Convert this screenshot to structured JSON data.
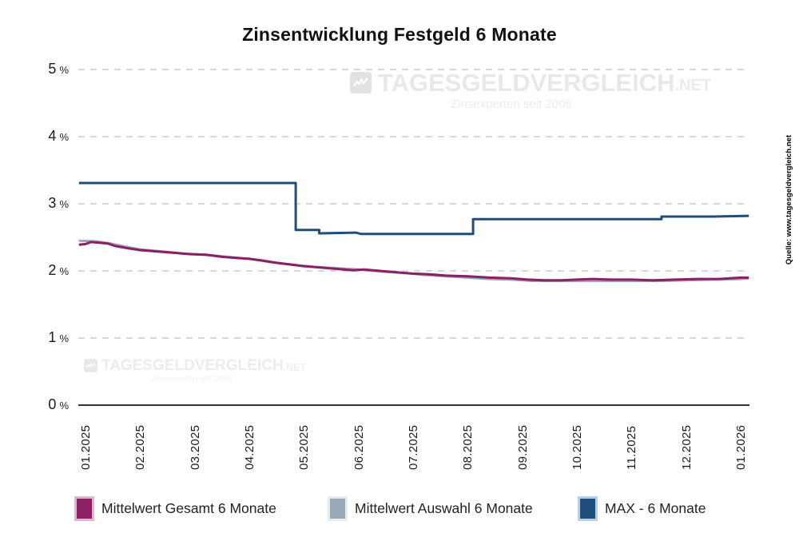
{
  "title": "Zinsentwicklung Festgeld 6 Monate",
  "watermark": {
    "brand": "TAGESGELDVERGLEICH",
    "tld": ".NET",
    "tagline": "Zinsexperten seit 2006"
  },
  "source": "Quelle: www.tagesgeldvergleich.net",
  "colors": {
    "gesamt": "#8b2064",
    "auswahl": "#98a9ba",
    "max": "#1f4e7c",
    "gesamt_border": "#ddb7d0",
    "auswahl_border": "#e7ebee",
    "max_border": "#b7d0e2",
    "grid": "#cccccc",
    "axis_line": "#333333",
    "text": "#1a1a1a"
  },
  "legend": {
    "items": [
      {
        "key": "gesamt",
        "label": "Mittelwert Gesamt 6 Monate"
      },
      {
        "key": "auswahl",
        "label": "Mittelwert Auswahl 6 Monate"
      },
      {
        "key": "max",
        "label": "MAX - 6 Monate"
      }
    ]
  },
  "chart_data": {
    "type": "line",
    "title": "Zinsentwicklung Festgeld 6 Monate",
    "x_ticks": [
      "01.2025",
      "02.2025",
      "03.2025",
      "04.2025",
      "05.2025",
      "06.2025",
      "07.2025",
      "08.2025",
      "09.2025",
      "10.2025",
      "11.2025",
      "12.2025",
      "01.2026"
    ],
    "y_ticks": [
      0,
      1,
      2,
      3,
      4,
      5
    ],
    "y_unit": "%",
    "ylim": [
      0,
      5
    ],
    "grid": "dashed-horizontal",
    "legend_position": "bottom",
    "x_note": "points use month index, 0 = 01.2025, 12 = 01.2026",
    "series": [
      {
        "name": "Mittelwert Gesamt 6 Monate",
        "color_key": "gesamt",
        "z": 2,
        "points": [
          [
            -0.12,
            2.39
          ],
          [
            0,
            2.4
          ],
          [
            0.1,
            2.43
          ],
          [
            0.25,
            2.42
          ],
          [
            0.4,
            2.41
          ],
          [
            0.55,
            2.37
          ],
          [
            0.75,
            2.34
          ],
          [
            1.0,
            2.31
          ],
          [
            1.3,
            2.29
          ],
          [
            1.6,
            2.27
          ],
          [
            1.9,
            2.25
          ],
          [
            2.2,
            2.24
          ],
          [
            2.5,
            2.21
          ],
          [
            2.8,
            2.19
          ],
          [
            3.0,
            2.18
          ],
          [
            3.2,
            2.16
          ],
          [
            3.5,
            2.12
          ],
          [
            3.8,
            2.09
          ],
          [
            4.0,
            2.07
          ],
          [
            4.3,
            2.05
          ],
          [
            4.6,
            2.03
          ],
          [
            4.9,
            2.01
          ],
          [
            5.1,
            2.02
          ],
          [
            5.4,
            2.0
          ],
          [
            5.7,
            1.98
          ],
          [
            6.0,
            1.96
          ],
          [
            6.3,
            1.95
          ],
          [
            6.6,
            1.93
          ],
          [
            7.0,
            1.92
          ],
          [
            7.4,
            1.9
          ],
          [
            7.8,
            1.89
          ],
          [
            8.1,
            1.87
          ],
          [
            8.4,
            1.86
          ],
          [
            8.7,
            1.86
          ],
          [
            9.0,
            1.87
          ],
          [
            9.3,
            1.88
          ],
          [
            9.6,
            1.87
          ],
          [
            10.0,
            1.87
          ],
          [
            10.4,
            1.86
          ],
          [
            10.8,
            1.87
          ],
          [
            11.2,
            1.88
          ],
          [
            11.6,
            1.88
          ],
          [
            12.0,
            1.9
          ],
          [
            12.15,
            1.9
          ]
        ]
      },
      {
        "name": "Mittelwert Auswahl 6 Monate",
        "color_key": "auswahl",
        "z": 1,
        "points": [
          [
            -0.12,
            2.45
          ],
          [
            0.2,
            2.44
          ],
          [
            0.45,
            2.41
          ],
          [
            0.75,
            2.36
          ],
          [
            1.0,
            2.32
          ],
          [
            1.4,
            2.29
          ],
          [
            1.8,
            2.26
          ],
          [
            2.2,
            2.24
          ],
          [
            2.6,
            2.21
          ],
          [
            3.0,
            2.18
          ],
          [
            3.4,
            2.13
          ],
          [
            3.8,
            2.09
          ],
          [
            4.2,
            2.06
          ],
          [
            4.6,
            2.04
          ],
          [
            5.0,
            2.02
          ],
          [
            5.4,
            1.99
          ],
          [
            5.8,
            1.97
          ],
          [
            6.2,
            1.94
          ],
          [
            6.6,
            1.92
          ],
          [
            7.0,
            1.9
          ],
          [
            7.4,
            1.88
          ],
          [
            7.8,
            1.87
          ],
          [
            8.2,
            1.85
          ],
          [
            8.6,
            1.85
          ],
          [
            9.0,
            1.85
          ],
          [
            9.5,
            1.85
          ],
          [
            10.0,
            1.85
          ],
          [
            10.5,
            1.85
          ],
          [
            11.0,
            1.86
          ],
          [
            11.5,
            1.87
          ],
          [
            12.0,
            1.88
          ],
          [
            12.15,
            1.89
          ]
        ]
      },
      {
        "name": "MAX - 6 Monate",
        "color_key": "max",
        "z": 3,
        "points": [
          [
            -0.12,
            3.31
          ],
          [
            3.85,
            3.31
          ],
          [
            3.85,
            2.61
          ],
          [
            4.28,
            2.61
          ],
          [
            4.28,
            2.56
          ],
          [
            4.95,
            2.57
          ],
          [
            5.05,
            2.55
          ],
          [
            7.1,
            2.55
          ],
          [
            7.1,
            2.77
          ],
          [
            10.55,
            2.77
          ],
          [
            10.55,
            2.81
          ],
          [
            11.5,
            2.81
          ],
          [
            12.15,
            2.82
          ]
        ]
      }
    ]
  }
}
